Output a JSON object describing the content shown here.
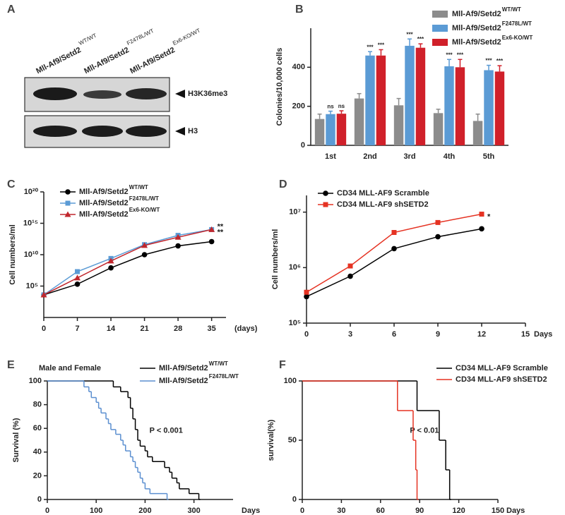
{
  "blot": {
    "panel": "A",
    "lanes": [
      {
        "name": "Mll-Af9/Setd2",
        "allele": "WT/WT",
        "color": "#222222"
      },
      {
        "name": "Mll-Af9/Setd2",
        "allele": "F2478L/WT",
        "color": "#2e3192"
      },
      {
        "name": "Mll-Af9/Setd2",
        "allele": "Ex6-KO/WT",
        "color": "#c1272d"
      }
    ],
    "bands": [
      "H3K36me3",
      "H3"
    ]
  },
  "chart_data": [
    {
      "panel": "B",
      "type": "bar",
      "ylabel": "Colonies/10,000 cells",
      "categories": [
        "1st",
        "2nd",
        "3rd",
        "4th",
        "5th"
      ],
      "ylim": [
        0,
        600
      ],
      "yticks": [
        0,
        200,
        400
      ],
      "series": [
        {
          "name": "Mll-Af9/Setd2",
          "allele": "WT/WT",
          "color": "#8c8c8c",
          "values": [
            135,
            240,
            205,
            165,
            125
          ],
          "errors": [
            25,
            25,
            35,
            20,
            35
          ]
        },
        {
          "name": "Mll-Af9/Setd2",
          "allele": "F2478L/WT",
          "color": "#5b9bd5",
          "values": [
            160,
            460,
            510,
            405,
            385
          ],
          "errors": [
            15,
            20,
            35,
            35,
            25
          ],
          "significance": [
            "ns",
            "***",
            "***",
            "***",
            "***"
          ],
          "label_color": "#2e3192"
        },
        {
          "name": "Mll-Af9/Setd2",
          "allele": "Ex6-KO/WT",
          "color": "#d0202a",
          "values": [
            162,
            460,
            500,
            400,
            378
          ],
          "errors": [
            15,
            30,
            20,
            40,
            30
          ],
          "significance": [
            "ns",
            "***",
            "***",
            "***",
            "***"
          ],
          "label_color": "#c1272d"
        }
      ]
    },
    {
      "panel": "C",
      "type": "line",
      "log_y": true,
      "xlabel": "(days)",
      "ylabel": "Cell numbers/ml",
      "x": [
        0,
        7,
        14,
        21,
        28,
        35
      ],
      "xlim": [
        0,
        38
      ],
      "xticks": [
        0,
        7,
        14,
        21,
        28,
        35
      ],
      "ylim": [
        1,
        1e+20
      ],
      "yticks": [
        {
          "value": 100000.0,
          "label": "10⁵"
        },
        {
          "value": 10000000000.0,
          "label": "10¹⁰"
        },
        {
          "value": 1000000000000000.0,
          "label": "10¹⁵"
        },
        {
          "value": 1e+20,
          "label": "10²⁰"
        }
      ],
      "series": [
        {
          "name": "Mll-Af9/Setd2",
          "allele": "WT/WT",
          "color": "#000000",
          "marker": "circle",
          "values": [
            4000,
            200000,
            80000000,
            10000000000,
            250000000000,
            1200000000000
          ]
        },
        {
          "name": "Mll-Af9/Setd2",
          "allele": "F2478L/WT",
          "color": "#5b9bd5",
          "marker": "square",
          "values": [
            4000,
            20000000,
            2500000000,
            400000000000,
            12000000000000,
            100000000000000
          ],
          "end_label": "**",
          "label_color": "#2e3192"
        },
        {
          "name": "Mll-Af9/Setd2",
          "allele": "Ex6-KO/WT",
          "color": "#c1272d",
          "marker": "triangle",
          "values": [
            4000,
            2000000,
            1000000000,
            300000000000,
            6000000000000,
            100000000000000
          ],
          "end_label": "**",
          "label_color": "#c1272d"
        }
      ]
    },
    {
      "panel": "D",
      "type": "line",
      "log_y": true,
      "xlabel": "Days",
      "ylabel": "Cell numbers/ml",
      "x": [
        0,
        3,
        6,
        9,
        12
      ],
      "xlim": [
        0,
        15
      ],
      "xticks": [
        0,
        3,
        6,
        9,
        12,
        15
      ],
      "ylim": [
        100000,
        20000000
      ],
      "yticks": [
        {
          "value": 100000,
          "label": "10⁵"
        },
        {
          "value": 1000000,
          "label": "10⁶"
        },
        {
          "value": 10000000,
          "label": "10⁷"
        }
      ],
      "series": [
        {
          "name": "CD34 MLL-AF9 Scramble",
          "color": "#000000",
          "marker": "circle",
          "values": [
            300000,
            700000,
            2200000,
            3600000,
            5000000
          ]
        },
        {
          "name": "CD34 MLL-AF9 shSETD2",
          "color": "#e53222",
          "marker": "square",
          "values": [
            360000,
            1070000,
            4300000,
            6500000,
            9200000
          ],
          "end_label": "*",
          "label_color": "#e53222"
        }
      ]
    },
    {
      "panel": "E",
      "type": "step",
      "subtitle": "Male and Female",
      "annotation": "P < 0.001",
      "xlabel": "Days",
      "ylabel": "Survival (%)",
      "xlim": [
        0,
        380
      ],
      "xticks": [
        0,
        100,
        200,
        300
      ],
      "ylim": [
        0,
        100
      ],
      "yticks": [
        0,
        20,
        40,
        60,
        80,
        100
      ],
      "series": [
        {
          "name": "Mll-Af9/Setd2",
          "allele": "WT/WT",
          "color": "#000000",
          "x": [
            0,
            135,
            150,
            165,
            170,
            175,
            180,
            185,
            190,
            200,
            205,
            215,
            240,
            250,
            255,
            265,
            270,
            290,
            310
          ],
          "values": [
            100,
            95,
            91,
            86,
            77,
            68,
            59,
            50,
            45,
            41,
            36,
            32,
            27,
            23,
            18,
            14,
            9,
            5,
            0
          ]
        },
        {
          "name": "Mll-Af9/Setd2",
          "allele": "F2478L/WT",
          "color": "#5b8fd0",
          "x": [
            0,
            75,
            85,
            90,
            100,
            105,
            110,
            120,
            125,
            130,
            140,
            150,
            155,
            160,
            170,
            175,
            180,
            185,
            190,
            195,
            200,
            210,
            245
          ],
          "values": [
            100,
            95,
            91,
            86,
            82,
            77,
            73,
            68,
            64,
            59,
            55,
            50,
            46,
            41,
            36,
            32,
            27,
            23,
            18,
            14,
            9,
            5,
            0
          ]
        }
      ]
    },
    {
      "panel": "F",
      "type": "step",
      "annotation": "P < 0.01",
      "xlabel": "Days",
      "ylabel": "survival(%)",
      "xlim": [
        0,
        150
      ],
      "xticks": [
        0,
        30,
        60,
        90,
        120,
        150
      ],
      "ylim": [
        0,
        100
      ],
      "yticks": [
        0,
        50,
        100
      ],
      "series": [
        {
          "name": "CD34 MLL-AF9 Scramble",
          "color": "#000000",
          "x": [
            0,
            88,
            105,
            110,
            113
          ],
          "values": [
            100,
            75,
            50,
            25,
            0
          ]
        },
        {
          "name": "CD34 MLL-AF9 shSETD2",
          "color": "#e53222",
          "x": [
            0,
            73,
            85,
            87,
            88
          ],
          "values": [
            100,
            75,
            50,
            25,
            0
          ]
        }
      ]
    }
  ]
}
